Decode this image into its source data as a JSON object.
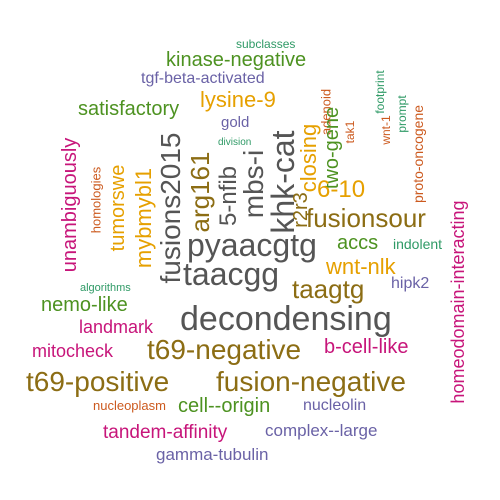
{
  "palette": {
    "green": "#4d9221",
    "orange": "#e6a000",
    "brown": "#8c6d14",
    "purple": "#6a62a6",
    "magenta": "#c7157a",
    "teal": "#2f9a66",
    "rust": "#cc5a1f",
    "gray": "#555555",
    "olive": "#8c7a14"
  },
  "words": [
    {
      "text": "subclasses",
      "color": "teal"
    },
    {
      "text": "kinase-negative",
      "color": "green"
    },
    {
      "text": "tgf-beta-activated",
      "color": "purple"
    },
    {
      "text": "satisfactory",
      "color": "green"
    },
    {
      "text": "lysine-9",
      "color": "orange"
    },
    {
      "text": "gold",
      "color": "purple"
    },
    {
      "text": "division",
      "color": "teal"
    },
    {
      "text": "unambiguously",
      "color": "magenta"
    },
    {
      "text": "homologies",
      "color": "rust"
    },
    {
      "text": "tumorswe",
      "color": "orange"
    },
    {
      "text": "mybmybl1",
      "color": "orange"
    },
    {
      "text": "fusions2015",
      "color": "gray"
    },
    {
      "text": "arg161",
      "color": "brown"
    },
    {
      "text": "5-nfib",
      "color": "gray"
    },
    {
      "text": "mbs-i",
      "color": "gray"
    },
    {
      "text": "khk-cat",
      "color": "gray"
    },
    {
      "text": "closing",
      "color": "orange"
    },
    {
      "text": "r2r3",
      "color": "brown"
    },
    {
      "text": "adenoid",
      "color": "rust"
    },
    {
      "text": "two-gene",
      "color": "green"
    },
    {
      "text": "tak1",
      "color": "rust"
    },
    {
      "text": "footprint",
      "color": "teal"
    },
    {
      "text": "wnt-1",
      "color": "rust"
    },
    {
      "text": "prompt",
      "color": "teal"
    },
    {
      "text": "proto-oncogene",
      "color": "rust"
    },
    {
      "text": "homeodomain-interacting",
      "color": "magenta"
    },
    {
      "text": "6-10",
      "color": "orange"
    },
    {
      "text": "fusionsour",
      "color": "brown"
    },
    {
      "text": "pyaacgtg",
      "color": "gray"
    },
    {
      "text": "accs",
      "color": "green"
    },
    {
      "text": "indolent",
      "color": "teal"
    },
    {
      "text": "wnt-nlk",
      "color": "orange"
    },
    {
      "text": "taacgg",
      "color": "gray"
    },
    {
      "text": "algorithms",
      "color": "teal"
    },
    {
      "text": "taagtg",
      "color": "brown"
    },
    {
      "text": "hipk2",
      "color": "purple"
    },
    {
      "text": "nemo-like",
      "color": "green"
    },
    {
      "text": "decondensing",
      "color": "gray"
    },
    {
      "text": "landmark",
      "color": "magenta"
    },
    {
      "text": "mitocheck",
      "color": "magenta"
    },
    {
      "text": "t69-negative",
      "color": "brown"
    },
    {
      "text": "b-cell-like",
      "color": "magenta"
    },
    {
      "text": "t69-positive",
      "color": "brown"
    },
    {
      "text": "fusion-negative",
      "color": "brown"
    },
    {
      "text": "nucleoplasm",
      "color": "rust"
    },
    {
      "text": "cell--origin",
      "color": "green"
    },
    {
      "text": "nucleolin",
      "color": "purple"
    },
    {
      "text": "tandem-affinity",
      "color": "magenta"
    },
    {
      "text": "complex--large",
      "color": "purple"
    },
    {
      "text": "gamma-tubulin",
      "color": "purple"
    }
  ]
}
